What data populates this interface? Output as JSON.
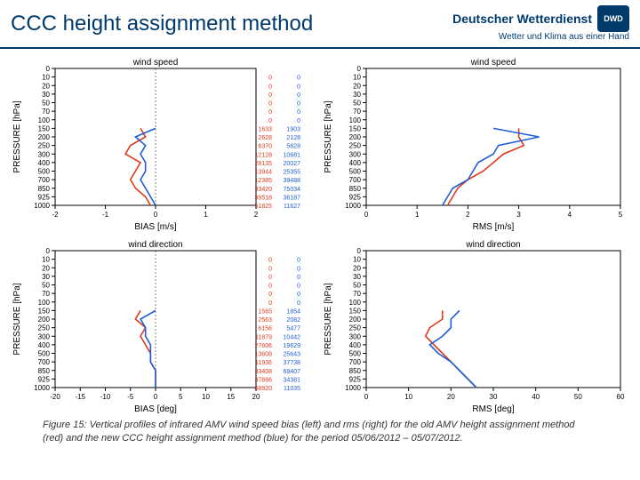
{
  "header": {
    "title": "CCC height assignment method",
    "org_name": "Deutscher Wetterdienst",
    "org_sub": "Wetter und Klima aus einer Hand",
    "logo_text": "DWD"
  },
  "colors": {
    "accent": "#003a6b",
    "axis": "#000000",
    "series_old": "#e03a1c",
    "series_new": "#1e5fd6",
    "count_old": "#e03a1c",
    "count_new": "#1e5fd6",
    "bg": "#ffffff"
  },
  "typography": {
    "title_fontsize": 24,
    "axis_label_fontsize": 10,
    "tick_fontsize": 8,
    "panel_title_fontsize": 10,
    "caption_fontsize": 11
  },
  "panels": {
    "tl": {
      "title": "wind speed",
      "xlabel": "BIAS [m/s]",
      "ylabel": "PRESSURE [hPa]",
      "xlim": [
        -2,
        2
      ],
      "xtick_step": 1,
      "y_ticks": [
        0,
        10,
        20,
        30,
        50,
        70,
        100,
        150,
        200,
        250,
        300,
        400,
        500,
        700,
        850,
        925,
        1000
      ],
      "series": {
        "old": [
          [
            -0.3,
            150
          ],
          [
            -0.2,
            200
          ],
          [
            -0.5,
            250
          ],
          [
            -0.6,
            300
          ],
          [
            -0.3,
            400
          ],
          [
            -0.4,
            500
          ],
          [
            -0.5,
            700
          ],
          [
            -0.4,
            850
          ],
          [
            -0.2,
            925
          ],
          [
            -0.1,
            1000
          ]
        ],
        "new": [
          [
            0.0,
            150
          ],
          [
            -0.4,
            200
          ],
          [
            -0.2,
            250
          ],
          [
            -0.3,
            300
          ],
          [
            -0.2,
            400
          ],
          [
            -0.2,
            500
          ],
          [
            -0.3,
            700
          ],
          [
            -0.2,
            850
          ],
          [
            -0.1,
            925
          ],
          [
            0.0,
            1000
          ]
        ]
      },
      "counts": [
        [
          "0",
          "0"
        ],
        [
          "0",
          "0"
        ],
        [
          "0",
          "0"
        ],
        [
          "0",
          "0"
        ],
        [
          "0",
          "0"
        ],
        [
          "0",
          "0"
        ],
        [
          "1633",
          "1903"
        ],
        [
          "2628",
          "2128"
        ],
        [
          "6370",
          "5628"
        ],
        [
          "12128",
          "10681"
        ],
        [
          "28135",
          "20027"
        ],
        [
          "13944",
          "25355"
        ],
        [
          "12385",
          "39488"
        ],
        [
          "33420",
          "75034"
        ],
        [
          "39518",
          "36187"
        ],
        [
          "51825",
          "11627"
        ]
      ]
    },
    "tr": {
      "title": "wind speed",
      "xlabel": "RMS [m/s]",
      "ylabel": "PRESSURE [hPa]",
      "xlim": [
        0,
        5
      ],
      "xtick_step": 1,
      "y_ticks": [
        0,
        10,
        20,
        30,
        50,
        70,
        100,
        150,
        200,
        250,
        300,
        400,
        500,
        700,
        850,
        925,
        1000
      ],
      "series": {
        "old": [
          [
            3.0,
            150
          ],
          [
            3.0,
            200
          ],
          [
            3.1,
            250
          ],
          [
            2.7,
            300
          ],
          [
            2.5,
            400
          ],
          [
            2.3,
            500
          ],
          [
            2.0,
            700
          ],
          [
            1.8,
            850
          ],
          [
            1.7,
            925
          ],
          [
            1.6,
            1000
          ]
        ],
        "new": [
          [
            2.5,
            150
          ],
          [
            3.4,
            200
          ],
          [
            2.6,
            250
          ],
          [
            2.5,
            300
          ],
          [
            2.2,
            400
          ],
          [
            2.1,
            500
          ],
          [
            2.0,
            700
          ],
          [
            1.7,
            850
          ],
          [
            1.6,
            925
          ],
          [
            1.5,
            1000
          ]
        ]
      }
    },
    "bl": {
      "title": "wind direction",
      "xlabel": "BIAS [deg]",
      "ylabel": "PRESSURE [hPa]",
      "xlim": [
        -20,
        20
      ],
      "xtick_step": 5,
      "y_ticks": [
        0,
        10,
        20,
        30,
        50,
        70,
        100,
        150,
        200,
        250,
        300,
        400,
        500,
        700,
        850,
        925,
        1000
      ],
      "series": {
        "old": [
          [
            -3,
            150
          ],
          [
            -4,
            200
          ],
          [
            -2,
            250
          ],
          [
            -3,
            300
          ],
          [
            -2,
            400
          ],
          [
            -1,
            500
          ],
          [
            -1,
            700
          ],
          [
            0,
            850
          ],
          [
            0,
            925
          ],
          [
            0,
            1000
          ]
        ],
        "new": [
          [
            0,
            150
          ],
          [
            -3,
            200
          ],
          [
            -2,
            250
          ],
          [
            -2,
            300
          ],
          [
            -1,
            400
          ],
          [
            -1,
            500
          ],
          [
            -1,
            700
          ],
          [
            0,
            850
          ],
          [
            0,
            925
          ],
          [
            0,
            1000
          ]
        ]
      },
      "counts": [
        [
          "0",
          "0"
        ],
        [
          "0",
          "0"
        ],
        [
          "0",
          "0"
        ],
        [
          "0",
          "0"
        ],
        [
          "0",
          "0"
        ],
        [
          "0",
          "0"
        ],
        [
          "1565",
          "1854"
        ],
        [
          "2563",
          "2082"
        ],
        [
          "6156",
          "5477"
        ],
        [
          "11879",
          "10442"
        ],
        [
          "27606",
          "19629"
        ],
        [
          "13608",
          "25643"
        ],
        [
          "11936",
          "37738"
        ],
        [
          "33408",
          "69407"
        ],
        [
          "37886",
          "34381"
        ],
        [
          "48920",
          "11035"
        ]
      ]
    },
    "br": {
      "title": "wind direction",
      "xlabel": "RMS [deg]",
      "ylabel": "PRESSURE [hPa]",
      "xlim": [
        0,
        60
      ],
      "xtick_step": 10,
      "y_ticks": [
        0,
        10,
        20,
        30,
        50,
        70,
        100,
        150,
        200,
        250,
        300,
        400,
        500,
        700,
        850,
        925,
        1000
      ],
      "series": {
        "old": [
          [
            18,
            150
          ],
          [
            18,
            200
          ],
          [
            15,
            250
          ],
          [
            14,
            300
          ],
          [
            16,
            400
          ],
          [
            18,
            500
          ],
          [
            20,
            700
          ],
          [
            22,
            850
          ],
          [
            24,
            925
          ],
          [
            26,
            1000
          ]
        ],
        "new": [
          [
            22,
            150
          ],
          [
            20,
            200
          ],
          [
            20,
            250
          ],
          [
            18,
            300
          ],
          [
            15,
            400
          ],
          [
            17,
            500
          ],
          [
            20,
            700
          ],
          [
            22,
            850
          ],
          [
            24,
            925
          ],
          [
            26,
            1000
          ]
        ]
      }
    }
  },
  "caption": "Figure 15: Vertical profiles of infrared AMV wind speed bias (left) and rms (right) for the old AMV height assignment method (red) and the new CCC height assignment method (blue) for the period 05/06/2012 – 05/07/2012."
}
